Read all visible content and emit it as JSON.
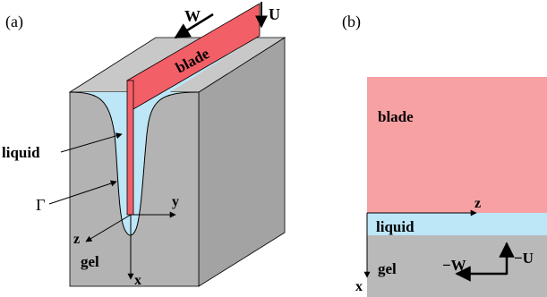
{
  "panel_a": {
    "tag": "(a)",
    "blade_label": "blade",
    "liquid_label": "liquid",
    "gamma_label": "Γ",
    "gel_label": "gel",
    "w_label": "W",
    "u_label": "U",
    "y_axis": "y",
    "z_axis": "z",
    "x_axis": "x"
  },
  "panel_b": {
    "tag": "(b)",
    "blade_label": "blade",
    "liquid_label": "liquid",
    "gel_label": "gel",
    "z_axis": "z",
    "x_axis": "x",
    "minus_w_label": "−W",
    "minus_u_label": "−U"
  },
  "colors": {
    "blade": "#f25f66",
    "blade_b": "#f7a1a3",
    "liquid": "#bde6f7",
    "gel_front": "#b3b3b3",
    "gel_top": "#c8c8c8",
    "gel_side": "#a3a3a3"
  }
}
